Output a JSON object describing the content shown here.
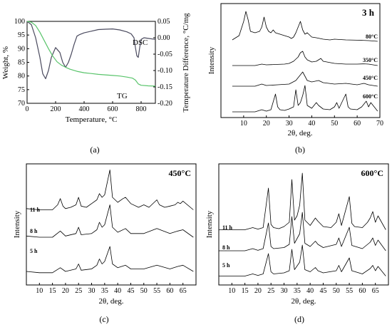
{
  "chart_data": [
    {
      "panel_label": "(a)",
      "type": "line",
      "xlabel": "Temperature, °C",
      "ylabel_left": "Weight, %",
      "ylabel_right": "Temperature Difference, °C/mg",
      "xlim": [
        0,
        900
      ],
      "ylim_left": [
        70,
        100
      ],
      "ylim_right": [
        -0.2,
        0.05
      ],
      "xticks": [
        "0",
        "200",
        "400",
        "600",
        "800"
      ],
      "yticks_left": [
        "70",
        "75",
        "80",
        "85",
        "90",
        "95",
        "100"
      ],
      "yticks_right": [
        "0.05",
        "0.00",
        "-0.05",
        "-0.10",
        "-0.15",
        "-0.20"
      ],
      "grid": false,
      "colors": {
        "dsc": "#4a4a5e",
        "tg": "#59c46b"
      },
      "series": [
        {
          "name": "DSC",
          "axis": "right",
          "x": [
            0,
            30,
            60,
            90,
            110,
            130,
            150,
            170,
            200,
            230,
            250,
            270,
            290,
            310,
            330,
            350,
            370,
            400,
            450,
            500,
            550,
            600,
            650,
            700,
            730,
            750,
            760,
            770,
            780,
            790,
            800,
            820,
            850,
            900
          ],
          "y": [
            0.05,
            0.04,
            0.0,
            -0.06,
            -0.11,
            -0.125,
            -0.1,
            -0.06,
            -0.03,
            -0.045,
            -0.075,
            -0.09,
            -0.075,
            -0.05,
            -0.02,
            0.005,
            0.01,
            0.015,
            0.02,
            0.025,
            0.026,
            0.027,
            0.024,
            0.018,
            0.012,
            0.0,
            -0.03,
            -0.055,
            -0.06,
            -0.03,
            -0.005,
            0.0,
            -0.002,
            -0.005
          ]
        },
        {
          "name": "TG",
          "axis": "left",
          "x": [
            0,
            30,
            60,
            90,
            120,
            150,
            180,
            210,
            240,
            270,
            300,
            350,
            400,
            450,
            500,
            550,
            600,
            650,
            700,
            740,
            760,
            780,
            800,
            850,
            900
          ],
          "y": [
            100,
            99.7,
            98.5,
            96,
            93,
            90,
            87.3,
            85.2,
            84,
            83.2,
            82.5,
            81.7,
            81.2,
            80.9,
            80.6,
            80.4,
            80.2,
            80.0,
            79.6,
            79.2,
            78.5,
            77.1,
            76.6,
            76.4,
            76.3
          ]
        }
      ],
      "annotations": [
        "DSC",
        "TG"
      ]
    },
    {
      "panel_label": "(b)",
      "type": "line",
      "title": "3 h",
      "xlabel": "2θ, deg.",
      "ylabel": "Intensity",
      "xlim": [
        0,
        70
      ],
      "xticks": [
        "10",
        "20",
        "30",
        "40",
        "50",
        "60",
        "70"
      ],
      "grid": false,
      "series": [
        {
          "name": "80°C",
          "x": [
            5,
            8,
            10,
            11,
            12,
            13,
            15,
            17,
            18,
            19,
            20,
            21,
            22,
            23,
            24,
            26,
            28,
            30,
            31,
            32,
            33,
            34,
            35,
            36,
            37,
            38,
            40,
            42,
            45,
            48,
            50,
            55,
            60,
            65,
            69
          ],
          "y": [
            0.3,
            0.6,
            1.6,
            2.3,
            1.7,
            0.9,
            0.8,
            0.9,
            1.2,
            1.9,
            1.2,
            0.9,
            0.8,
            1.0,
            0.8,
            0.7,
            0.6,
            0.5,
            0.4,
            0.5,
            0.8,
            1.2,
            1.6,
            1.0,
            0.7,
            0.8,
            0.5,
            0.45,
            0.35,
            0.3,
            0.35,
            0.3,
            0.28,
            0.25,
            0.2
          ]
        },
        {
          "name": "350°C",
          "x": [
            5,
            10,
            15,
            18,
            20,
            25,
            28,
            30,
            32,
            33,
            34,
            35,
            36,
            37,
            38,
            40,
            42,
            44,
            45,
            50,
            55,
            60,
            63,
            65,
            69
          ],
          "y": [
            0.2,
            0.2,
            0.2,
            0.3,
            0.25,
            0.28,
            0.3,
            0.35,
            0.5,
            0.65,
            0.8,
            1.1,
            1.2,
            0.8,
            0.6,
            0.45,
            0.5,
            0.7,
            0.5,
            0.35,
            0.3,
            0.3,
            0.32,
            0.3,
            0.2
          ]
        },
        {
          "name": "450°C",
          "x": [
            5,
            10,
            15,
            18,
            20,
            25,
            30,
            33,
            35,
            36,
            37,
            38,
            40,
            43,
            45,
            50,
            55,
            60,
            63,
            65,
            69
          ],
          "y": [
            0.2,
            0.2,
            0.2,
            0.35,
            0.25,
            0.3,
            0.35,
            0.6,
            1.0,
            1.2,
            0.9,
            0.6,
            0.5,
            0.6,
            0.45,
            0.35,
            0.4,
            0.3,
            0.4,
            0.3,
            0.2
          ]
        },
        {
          "name": "600°C",
          "x": [
            5,
            10,
            15,
            18,
            20,
            22,
            24,
            25,
            26,
            28,
            30,
            32,
            33,
            34,
            35,
            36,
            37,
            38,
            40,
            42,
            43,
            45,
            48,
            50,
            51,
            52,
            55,
            56,
            57,
            60,
            62,
            63,
            64,
            65,
            66,
            69
          ],
          "y": [
            0.15,
            0.15,
            0.15,
            0.3,
            0.2,
            0.3,
            1.4,
            0.5,
            0.3,
            0.25,
            0.35,
            0.5,
            1.7,
            0.6,
            0.8,
            1.3,
            2.0,
            0.6,
            0.4,
            0.8,
            0.6,
            0.35,
            0.3,
            0.5,
            0.8,
            0.4,
            1.4,
            0.5,
            0.35,
            0.3,
            0.5,
            0.7,
            0.9,
            0.5,
            0.8,
            0.2
          ]
        }
      ],
      "annotations": [
        "80°C",
        "350°C",
        "450°C",
        "600°C"
      ]
    },
    {
      "panel_label": "(c)",
      "type": "line",
      "title": "450°C",
      "xlabel": "2θ, deg.",
      "ylabel": "Intensity",
      "xlim": [
        5,
        70
      ],
      "xticks": [
        "10",
        "15",
        "20",
        "25",
        "30",
        "35",
        "40",
        "45",
        "50",
        "55",
        "60",
        "65"
      ],
      "grid": false,
      "series": [
        {
          "name": "11 h",
          "x": [
            5,
            10,
            15,
            17,
            18,
            19,
            20,
            22,
            24,
            25,
            26,
            28,
            30,
            32,
            33,
            34,
            35,
            36,
            37,
            38,
            40,
            42,
            43,
            45,
            48,
            50,
            52,
            55,
            56,
            58,
            60,
            62,
            63,
            64,
            65,
            69
          ],
          "y": [
            0.35,
            0.3,
            0.3,
            0.5,
            0.75,
            0.45,
            0.35,
            0.4,
            0.5,
            0.8,
            0.45,
            0.4,
            0.55,
            0.7,
            0.95,
            0.8,
            0.9,
            1.4,
            1.9,
            0.8,
            0.6,
            0.75,
            0.8,
            0.55,
            0.4,
            0.5,
            0.4,
            0.7,
            0.5,
            0.4,
            0.45,
            0.5,
            0.6,
            0.55,
            0.65,
            0.3
          ]
        },
        {
          "name": "8 h",
          "x": [
            5,
            10,
            15,
            18,
            20,
            24,
            25,
            26,
            30,
            32,
            33,
            34,
            35,
            36,
            37,
            38,
            40,
            43,
            45,
            50,
            55,
            60,
            63,
            65,
            69
          ],
          "y": [
            0.25,
            0.2,
            0.2,
            0.45,
            0.25,
            0.35,
            0.6,
            0.3,
            0.35,
            0.5,
            0.8,
            0.6,
            0.7,
            1.1,
            1.5,
            0.6,
            0.4,
            0.55,
            0.35,
            0.35,
            0.55,
            0.35,
            0.45,
            0.5,
            0.2
          ]
        },
        {
          "name": "5 h",
          "x": [
            5,
            10,
            15,
            18,
            20,
            24,
            25,
            26,
            30,
            32,
            33,
            34,
            35,
            36,
            37,
            38,
            40,
            43,
            45,
            50,
            55,
            60,
            63,
            65,
            69
          ],
          "y": [
            0.2,
            0.15,
            0.15,
            0.35,
            0.2,
            0.3,
            0.5,
            0.25,
            0.3,
            0.45,
            0.7,
            0.5,
            0.6,
            0.9,
            1.2,
            0.5,
            0.35,
            0.45,
            0.3,
            0.3,
            0.45,
            0.3,
            0.4,
            0.45,
            0.2
          ]
        }
      ],
      "annotations": [
        "11 h",
        "8 h",
        "5 h"
      ]
    },
    {
      "panel_label": "(d)",
      "type": "line",
      "title": "600°C",
      "xlabel": "2θ, deg.",
      "ylabel": "Intensity",
      "xlim": [
        5,
        70
      ],
      "xticks": [
        "10",
        "15",
        "20",
        "25",
        "30",
        "35",
        "40",
        "45",
        "50",
        "55",
        "60",
        "65"
      ],
      "grid": false,
      "series": [
        {
          "name": "11 h",
          "x": [
            5,
            10,
            15,
            18,
            20,
            22,
            24,
            25,
            26,
            28,
            30,
            32,
            33,
            34,
            35,
            36,
            37,
            38,
            40,
            42,
            43,
            45,
            48,
            50,
            51,
            52,
            55,
            56,
            57,
            60,
            62,
            63,
            64,
            65,
            66,
            69
          ],
          "y": [
            0.25,
            0.25,
            0.25,
            0.35,
            0.28,
            0.35,
            2.2,
            0.5,
            0.35,
            0.3,
            0.4,
            0.6,
            2.6,
            0.7,
            0.9,
            1.4,
            2.9,
            0.7,
            0.45,
            0.8,
            0.65,
            0.4,
            0.35,
            0.6,
            1.0,
            0.45,
            1.8,
            0.55,
            0.4,
            0.35,
            0.6,
            0.8,
            1.1,
            0.6,
            0.9,
            0.25
          ]
        },
        {
          "name": "8 h",
          "x": [
            5,
            10,
            15,
            18,
            20,
            22,
            24,
            25,
            26,
            30,
            32,
            33,
            34,
            36,
            37,
            38,
            40,
            42,
            43,
            45,
            50,
            51,
            52,
            55,
            56,
            60,
            63,
            64,
            65,
            66,
            69
          ],
          "y": [
            0.2,
            0.2,
            0.2,
            0.3,
            0.22,
            0.3,
            1.5,
            0.4,
            0.3,
            0.35,
            0.5,
            1.8,
            0.55,
            1.0,
            2.0,
            0.55,
            0.4,
            0.65,
            0.5,
            0.35,
            0.5,
            0.8,
            0.4,
            1.3,
            0.45,
            0.3,
            0.6,
            0.8,
            0.45,
            0.7,
            0.2
          ]
        },
        {
          "name": "5 h",
          "x": [
            5,
            10,
            15,
            18,
            20,
            22,
            24,
            25,
            26,
            30,
            32,
            33,
            34,
            36,
            37,
            38,
            40,
            42,
            43,
            45,
            50,
            51,
            52,
            55,
            56,
            60,
            63,
            64,
            65,
            66,
            69
          ],
          "y": [
            0.15,
            0.15,
            0.15,
            0.25,
            0.18,
            0.25,
            1.2,
            0.35,
            0.25,
            0.3,
            0.4,
            1.4,
            0.45,
            0.8,
            1.6,
            0.45,
            0.35,
            0.55,
            0.4,
            0.3,
            0.4,
            0.65,
            0.35,
            1.0,
            0.4,
            0.25,
            0.5,
            0.65,
            0.4,
            0.6,
            0.15
          ]
        }
      ],
      "annotations": [
        "11 h",
        "8 h",
        "5 h"
      ]
    }
  ]
}
